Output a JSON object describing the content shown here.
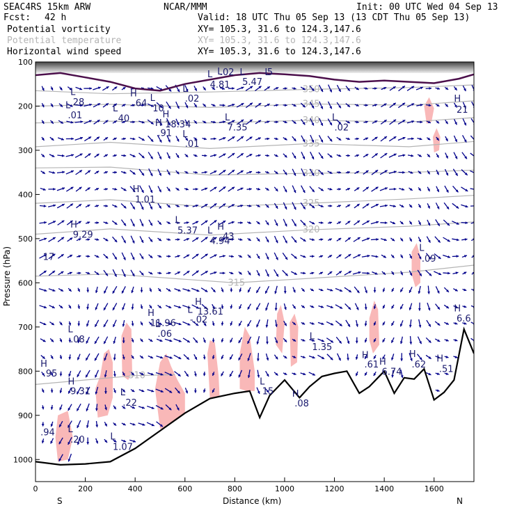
{
  "header": {
    "model": "SEAC4RS 15km ARW",
    "org": "NCAR/MMM",
    "init": "Init: 00 UTC Wed 04 Sep 13",
    "fcst_label": "Fcst:",
    "fcst_value": "42 h",
    "valid": "Valid: 18 UTC Thu 05 Sep 13 (13 CDT Thu 05 Sep 13)",
    "fields": [
      {
        "name": "Potential vorticity",
        "xy": "XY= 105.3, 31.6 to 124.3,147.6",
        "color": "#000000"
      },
      {
        "name": "Potential temperature",
        "xy": "XY= 105.3, 31.6 to 124.3,147.6",
        "color": "#b4b4b4"
      },
      {
        "name": "Horizontal wind speed",
        "xy": "XY= 105.3, 31.6 to 124.3,147.6",
        "color": "#000000"
      }
    ]
  },
  "chart_data": {
    "type": "cross-section",
    "xlabel": "Distance (km)",
    "ylabel": "Pressure (hPa)",
    "xlim": [
      0,
      1760
    ],
    "ylim": [
      1050,
      100
    ],
    "x_ticks": [
      0,
      200,
      400,
      600,
      800,
      1000,
      1200,
      1400,
      1600
    ],
    "y_ticks": [
      100,
      200,
      300,
      400,
      500,
      600,
      700,
      800,
      900,
      1000
    ],
    "left_end": "S",
    "right_end": "N",
    "colors": {
      "terrain": "#000000",
      "pv_fill": "#f9b8b8",
      "theta": "#b4b4b4",
      "wind": "#00008b",
      "labels": "#1a1a6e",
      "pv_contour": "#4b0f4b"
    },
    "terrain": [
      [
        0,
        1005
      ],
      [
        100,
        1012
      ],
      [
        200,
        1010
      ],
      [
        300,
        1005
      ],
      [
        400,
        975
      ],
      [
        500,
        935
      ],
      [
        600,
        895
      ],
      [
        700,
        862
      ],
      [
        800,
        850
      ],
      [
        860,
        845
      ],
      [
        900,
        905
      ],
      [
        940,
        855
      ],
      [
        1000,
        820
      ],
      [
        1060,
        860
      ],
      [
        1100,
        835
      ],
      [
        1150,
        812
      ],
      [
        1200,
        805
      ],
      [
        1250,
        800
      ],
      [
        1300,
        850
      ],
      [
        1340,
        835
      ],
      [
        1400,
        800
      ],
      [
        1440,
        850
      ],
      [
        1480,
        815
      ],
      [
        1520,
        818
      ],
      [
        1560,
        795
      ],
      [
        1600,
        865
      ],
      [
        1640,
        848
      ],
      [
        1680,
        820
      ],
      [
        1720,
        705
      ],
      [
        1760,
        760
      ]
    ],
    "theta_contours": [
      {
        "label": "350",
        "points": [
          [
            0,
            165
          ],
          [
            300,
            172
          ],
          [
            700,
            168
          ],
          [
            1100,
            162
          ],
          [
            1500,
            158
          ],
          [
            1760,
            152
          ]
        ]
      },
      {
        "label": "345",
        "points": [
          [
            0,
            200
          ],
          [
            300,
            196
          ],
          [
            700,
            203
          ],
          [
            1100,
            195
          ],
          [
            1500,
            198
          ],
          [
            1760,
            188
          ]
        ]
      },
      {
        "label": "340",
        "points": [
          [
            0,
            238
          ],
          [
            300,
            234
          ],
          [
            700,
            238
          ],
          [
            1100,
            232
          ],
          [
            1500,
            236
          ],
          [
            1760,
            226
          ]
        ]
      },
      {
        "label": "335",
        "points": [
          [
            0,
            292
          ],
          [
            300,
            282
          ],
          [
            700,
            296
          ],
          [
            1100,
            285
          ],
          [
            1500,
            292
          ],
          [
            1760,
            280
          ]
        ]
      },
      {
        "label": "330",
        "points": [
          [
            0,
            340
          ],
          [
            300,
            338
          ],
          [
            700,
            356
          ],
          [
            1100,
            352
          ],
          [
            1500,
            350
          ],
          [
            1760,
            345
          ]
        ]
      },
      {
        "label": "325",
        "points": [
          [
            0,
            420
          ],
          [
            300,
            412
          ],
          [
            700,
            428
          ],
          [
            1100,
            420
          ],
          [
            1500,
            410
          ],
          [
            1760,
            402
          ]
        ]
      },
      {
        "label": "320",
        "points": [
          [
            0,
            490
          ],
          [
            300,
            478
          ],
          [
            700,
            492
          ],
          [
            1100,
            480
          ],
          [
            1500,
            472
          ],
          [
            1760,
            462
          ]
        ]
      },
      {
        "label": "315",
        "points": [
          [
            0,
            585
          ],
          [
            300,
            580
          ],
          [
            600,
            592
          ],
          [
            800,
            600
          ],
          [
            1100,
            590
          ],
          [
            1500,
            576
          ],
          [
            1760,
            560
          ]
        ]
      },
      {
        "label": "310",
        "points": [
          [
            0,
            830
          ],
          [
            200,
            820
          ],
          [
            400,
            810
          ],
          [
            560,
            808
          ]
        ]
      }
    ],
    "pv_regions": [
      [
        [
          90,
          900
        ],
        [
          130,
          890
        ],
        [
          150,
          950
        ],
        [
          130,
          1000
        ],
        [
          90,
          1005
        ],
        [
          80,
          950
        ]
      ],
      [
        [
          240,
          840
        ],
        [
          260,
          810
        ],
        [
          275,
          760
        ],
        [
          295,
          750
        ],
        [
          310,
          780
        ],
        [
          310,
          860
        ],
        [
          290,
          900
        ],
        [
          250,
          905
        ]
      ],
      [
        [
          345,
          720
        ],
        [
          365,
          690
        ],
        [
          385,
          705
        ],
        [
          388,
          800
        ],
        [
          372,
          820
        ],
        [
          348,
          810
        ]
      ],
      [
        [
          480,
          840
        ],
        [
          500,
          780
        ],
        [
          525,
          760
        ],
        [
          545,
          790
        ],
        [
          570,
          820
        ],
        [
          600,
          850
        ],
        [
          600,
          900
        ],
        [
          540,
          935
        ],
        [
          500,
          930
        ]
      ],
      [
        [
          690,
          760
        ],
        [
          700,
          730
        ],
        [
          720,
          735
        ],
        [
          735,
          810
        ],
        [
          740,
          870
        ],
        [
          720,
          880
        ],
        [
          700,
          860
        ]
      ],
      [
        [
          820,
          760
        ],
        [
          840,
          700
        ],
        [
          860,
          720
        ],
        [
          880,
          800
        ],
        [
          880,
          845
        ],
        [
          850,
          845
        ],
        [
          820,
          840
        ]
      ],
      [
        [
          970,
          670
        ],
        [
          985,
          650
        ],
        [
          1000,
          690
        ],
        [
          990,
          760
        ],
        [
          965,
          740
        ]
      ],
      [
        [
          1020,
          690
        ],
        [
          1040,
          670
        ],
        [
          1055,
          700
        ],
        [
          1050,
          780
        ],
        [
          1025,
          790
        ]
      ],
      [
        [
          1340,
          680
        ],
        [
          1360,
          640
        ],
        [
          1375,
          660
        ],
        [
          1380,
          740
        ],
        [
          1355,
          760
        ],
        [
          1340,
          730
        ]
      ],
      [
        [
          1510,
          530
        ],
        [
          1530,
          510
        ],
        [
          1545,
          540
        ],
        [
          1545,
          600
        ],
        [
          1525,
          610
        ],
        [
          1510,
          580
        ]
      ],
      [
        [
          1560,
          200
        ],
        [
          1580,
          180
        ],
        [
          1600,
          205
        ],
        [
          1590,
          235
        ],
        [
          1570,
          240
        ]
      ],
      [
        [
          1595,
          270
        ],
        [
          1610,
          250
        ],
        [
          1625,
          270
        ],
        [
          1620,
          300
        ],
        [
          1600,
          305
        ]
      ]
    ],
    "pv_contour_tropopause": [
      [
        0,
        130
      ],
      [
        100,
        125
      ],
      [
        200,
        135
      ],
      [
        300,
        145
      ],
      [
        400,
        160
      ],
      [
        500,
        165
      ],
      [
        600,
        150
      ],
      [
        700,
        140
      ],
      [
        800,
        130
      ],
      [
        900,
        125
      ],
      [
        1000,
        128
      ],
      [
        1100,
        132
      ],
      [
        1200,
        140
      ],
      [
        1300,
        145
      ],
      [
        1400,
        142
      ],
      [
        1500,
        145
      ],
      [
        1600,
        148
      ],
      [
        1700,
        138
      ],
      [
        1760,
        128
      ]
    ],
    "annotations": [
      {
        "text": "H",
        "x": 380,
        "y": 178
      },
      {
        "text": ".64",
        "x": 390,
        "y": 200
      },
      {
        "text": "L",
        "x": 590,
        "y": 168
      },
      {
        "text": ".02",
        "x": 600,
        "y": 190
      },
      {
        "text": "L",
        "x": 460,
        "y": 188
      },
      {
        "text": "10",
        "x": 470,
        "y": 212
      },
      {
        "text": "L",
        "x": 140,
        "y": 175
      },
      {
        "text": "28",
        "x": 150,
        "y": 198
      },
      {
        "text": "L",
        "x": 120,
        "y": 205
      },
      {
        "text": ".01",
        "x": 130,
        "y": 228
      },
      {
        "text": "L",
        "x": 310,
        "y": 212
      },
      {
        "text": ".40",
        "x": 320,
        "y": 235
      },
      {
        "text": "H",
        "x": 510,
        "y": 225
      },
      {
        "text": "18.34",
        "x": 520,
        "y": 248
      },
      {
        "text": "H",
        "x": 480,
        "y": 245
      },
      {
        "text": ".91",
        "x": 490,
        "y": 268
      },
      {
        "text": "L",
        "x": 590,
        "y": 270
      },
      {
        "text": ".01",
        "x": 600,
        "y": 292
      },
      {
        "text": "L",
        "x": 760,
        "y": 232
      },
      {
        "text": "7.35",
        "x": 770,
        "y": 255
      },
      {
        "text": "L",
        "x": 1190,
        "y": 232
      },
      {
        "text": ".02",
        "x": 1200,
        "y": 255
      },
      {
        "text": "L",
        "x": 690,
        "y": 135
      },
      {
        "text": "4.81",
        "x": 700,
        "y": 158
      },
      {
        "text": "L",
        "x": 820,
        "y": 130
      },
      {
        "text": "5.47",
        "x": 830,
        "y": 152
      },
      {
        "text": "L",
        "x": 730,
        "y": 128
      },
      {
        "text": ".02",
        "x": 740,
        "y": 130
      },
      {
        "text": "L",
        "x": 920,
        "y": 130
      },
      {
        "text": "5",
        "x": 930,
        "y": 130
      },
      {
        "text": "H",
        "x": 1680,
        "y": 190
      },
      {
        "text": "21",
        "x": 1690,
        "y": 215
      },
      {
        "text": "H",
        "x": 390,
        "y": 395
      },
      {
        "text": "1.01",
        "x": 400,
        "y": 418
      },
      {
        "text": "H",
        "x": 140,
        "y": 475
      },
      {
        "text": "9.29",
        "x": 150,
        "y": 498
      },
      {
        "text": "L",
        "x": 560,
        "y": 465
      },
      {
        "text": "5.37",
        "x": 570,
        "y": 488
      },
      {
        "text": "L",
        "x": 690,
        "y": 488
      },
      {
        "text": "4.94",
        "x": 700,
        "y": 512
      },
      {
        "text": "H",
        "x": 730,
        "y": 480
      },
      {
        "text": ".43",
        "x": 740,
        "y": 502
      },
      {
        "text": "17",
        "x": 30,
        "y": 548
      },
      {
        "text": "L",
        "x": 1540,
        "y": 528
      },
      {
        "text": ".09",
        "x": 1550,
        "y": 552
      },
      {
        "text": "H",
        "x": 640,
        "y": 650
      },
      {
        "text": "13.61",
        "x": 650,
        "y": 672
      },
      {
        "text": "L",
        "x": 610,
        "y": 668
      },
      {
        "text": "-.02",
        "x": 620,
        "y": 690
      },
      {
        "text": "H",
        "x": 450,
        "y": 675
      },
      {
        "text": "11.96",
        "x": 460,
        "y": 698
      },
      {
        "text": "L",
        "x": 480,
        "y": 700
      },
      {
        "text": ".06",
        "x": 490,
        "y": 722
      },
      {
        "text": "L",
        "x": 130,
        "y": 712
      },
      {
        "text": ".08",
        "x": 140,
        "y": 735
      },
      {
        "text": "H",
        "x": 1680,
        "y": 665
      },
      {
        "text": "6.6",
        "x": 1690,
        "y": 688
      },
      {
        "text": "L",
        "x": 1100,
        "y": 728
      },
      {
        "text": "1.35",
        "x": 1110,
        "y": 752
      },
      {
        "text": "H",
        "x": 1310,
        "y": 770
      },
      {
        "text": ".61",
        "x": 1320,
        "y": 792
      },
      {
        "text": "H",
        "x": 1380,
        "y": 785
      },
      {
        "text": "6.74",
        "x": 1390,
        "y": 808
      },
      {
        "text": "H",
        "x": 1500,
        "y": 768
      },
      {
        "text": ".62",
        "x": 1510,
        "y": 792
      },
      {
        "text": "H",
        "x": 1610,
        "y": 778
      },
      {
        "text": ".51",
        "x": 1620,
        "y": 802
      },
      {
        "text": "H",
        "x": 20,
        "y": 790
      },
      {
        "text": ".95",
        "x": 30,
        "y": 812
      },
      {
        "text": "H",
        "x": 130,
        "y": 830
      },
      {
        "text": "9.31",
        "x": 140,
        "y": 852
      },
      {
        "text": "L",
        "x": 340,
        "y": 855
      },
      {
        "text": ".22",
        "x": 350,
        "y": 878
      },
      {
        "text": "L",
        "x": 900,
        "y": 830
      },
      {
        "text": "15",
        "x": 910,
        "y": 852
      },
      {
        "text": "H",
        "x": 1030,
        "y": 858
      },
      {
        "text": ".08",
        "x": 1040,
        "y": 880
      },
      {
        "text": "L",
        "x": 130,
        "y": 938
      },
      {
        "text": ".20",
        "x": 140,
        "y": 962
      },
      {
        "text": "L",
        "x": 300,
        "y": 955
      },
      {
        "text": "1.07",
        "x": 310,
        "y": 978
      },
      {
        "text": ".94",
        "x": 20,
        "y": 945
      }
    ]
  }
}
